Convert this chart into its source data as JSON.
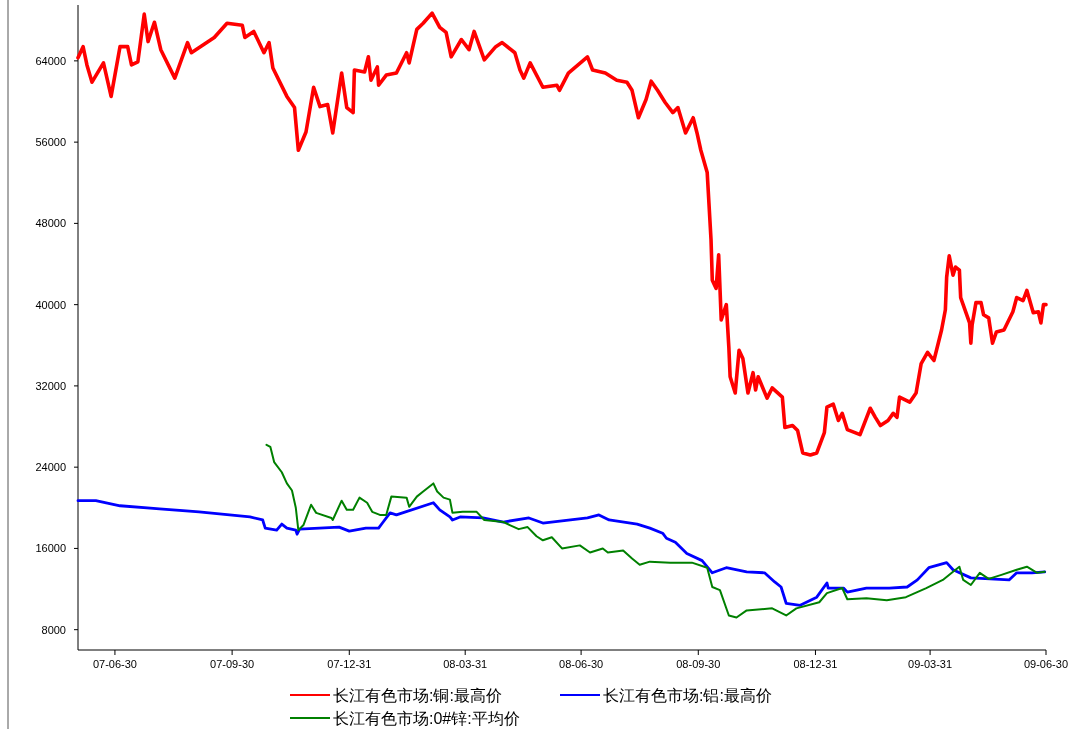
{
  "chart_data": {
    "type": "line",
    "xlim": [
      "2007-06-01",
      "2009-06-30"
    ],
    "ylim": [
      6000,
      69500
    ],
    "xticks": [
      {
        "value": "2007-06-30",
        "label": "07-06-30"
      },
      {
        "value": "2007-09-30",
        "label": "07-09-30"
      },
      {
        "value": "2007-12-31",
        "label": "07-12-31"
      },
      {
        "value": "2008-03-31",
        "label": "08-03-31"
      },
      {
        "value": "2008-06-30",
        "label": "08-06-30"
      },
      {
        "value": "2008-09-30",
        "label": "08-09-30"
      },
      {
        "value": "2008-12-31",
        "label": "08-12-31"
      },
      {
        "value": "2009-03-31",
        "label": "09-03-31"
      },
      {
        "value": "2009-06-30",
        "label": "09-06-30"
      }
    ],
    "yticks": [
      8000,
      16000,
      24000,
      32000,
      40000,
      48000,
      56000,
      64000
    ],
    "grid": false,
    "legend": "bottom",
    "series": [
      {
        "name": "长江有色市场:铜:最高价",
        "color": "#ff0000",
        "x": [
          "2007-06-01",
          "2007-06-05",
          "2007-06-08",
          "2007-06-12",
          "2007-06-21",
          "2007-06-27",
          "2007-07-04",
          "2007-07-10",
          "2007-07-13",
          "2007-07-18",
          "2007-07-23",
          "2007-07-26",
          "2007-07-31",
          "2007-08-05",
          "2007-08-16",
          "2007-08-26",
          "2007-08-29",
          "2007-09-16",
          "2007-09-26",
          "2007-10-08",
          "2007-10-10",
          "2007-10-17",
          "2007-10-25",
          "2007-10-29",
          "2007-11-01",
          "2007-11-12",
          "2007-11-18",
          "2007-11-21",
          "2007-11-27",
          "2007-12-03",
          "2007-12-08",
          "2007-12-14",
          "2007-12-18",
          "2007-12-25",
          "2007-12-29",
          "2008-01-03",
          "2008-01-04",
          "2008-01-12",
          "2008-01-15",
          "2008-01-17",
          "2008-01-22",
          "2008-01-23",
          "2008-01-29",
          "2008-02-06",
          "2008-02-14",
          "2008-02-16",
          "2008-02-22",
          "2008-02-27",
          "2008-03-05",
          "2008-03-11",
          "2008-03-16",
          "2008-03-20",
          "2008-03-28",
          "2008-04-03",
          "2008-04-07",
          "2008-04-15",
          "2008-04-24",
          "2008-04-29",
          "2008-05-09",
          "2008-05-13",
          "2008-05-16",
          "2008-05-21",
          "2008-05-31",
          "2008-06-11",
          "2008-06-13",
          "2008-06-20",
          "2008-07-05",
          "2008-07-09",
          "2008-07-19",
          "2008-07-28",
          "2008-08-05",
          "2008-08-09",
          "2008-08-14",
          "2008-08-20",
          "2008-08-24",
          "2008-08-29",
          "2008-09-04",
          "2008-09-10",
          "2008-09-14",
          "2008-09-20",
          "2008-09-26",
          "2008-09-29",
          "2008-10-02",
          "2008-10-07",
          "2008-10-10",
          "2008-10-11",
          "2008-10-14",
          "2008-10-16",
          "2008-10-17",
          "2008-10-18",
          "2008-10-22",
          "2008-10-24",
          "2008-10-25",
          "2008-10-29",
          "2008-11-01",
          "2008-11-04",
          "2008-11-08",
          "2008-11-12",
          "2008-11-14",
          "2008-11-16",
          "2008-11-23",
          "2008-11-27",
          "2008-12-05",
          "2008-12-07",
          "2008-12-13",
          "2008-12-17",
          "2008-12-21",
          "2008-12-27",
          "2009-01-01",
          "2009-01-07",
          "2009-01-09",
          "2009-01-14",
          "2009-01-18",
          "2009-01-21",
          "2009-01-25",
          "2009-02-04",
          "2009-02-12",
          "2009-02-16",
          "2009-02-20",
          "2009-02-26",
          "2009-03-02",
          "2009-03-05",
          "2009-03-07",
          "2009-03-15",
          "2009-03-20",
          "2009-03-24",
          "2009-03-29",
          "2009-04-03",
          "2009-04-09",
          "2009-04-12",
          "2009-04-13",
          "2009-04-15",
          "2009-04-18",
          "2009-04-20",
          "2009-04-23",
          "2009-04-24",
          "2009-05-01",
          "2009-05-02",
          "2009-05-03",
          "2009-05-06",
          "2009-05-10",
          "2009-05-12",
          "2009-05-16",
          "2009-05-19",
          "2009-05-22",
          "2009-05-28",
          "2009-06-04",
          "2009-06-07",
          "2009-06-12",
          "2009-06-15",
          "2009-06-20",
          "2009-06-24",
          "2009-06-26",
          "2009-06-28",
          "2009-06-30"
        ],
        "values": [
          64300,
          65400,
          63600,
          61900,
          63800,
          60500,
          65400,
          65400,
          63600,
          63900,
          68600,
          65900,
          67800,
          65100,
          62300,
          65800,
          64800,
          66300,
          67700,
          67500,
          66300,
          66900,
          64800,
          65800,
          63300,
          60500,
          59400,
          55200,
          57000,
          61400,
          59500,
          59700,
          56900,
          62800,
          59400,
          58900,
          63100,
          62900,
          64400,
          62100,
          63400,
          61600,
          62600,
          62800,
          64800,
          63800,
          67100,
          67700,
          68700,
          67300,
          66800,
          64400,
          66100,
          65100,
          66900,
          64100,
          65400,
          65800,
          64800,
          63100,
          62300,
          63800,
          61400,
          61600,
          61100,
          62800,
          64400,
          63100,
          62800,
          62100,
          61900,
          61100,
          58400,
          60200,
          62000,
          61100,
          59900,
          58900,
          59400,
          56900,
          58400,
          56900,
          55200,
          53000,
          46400,
          42400,
          41600,
          44900,
          41700,
          38500,
          40000,
          35800,
          32900,
          31300,
          35500,
          34700,
          31300,
          33300,
          31600,
          32900,
          30800,
          31800,
          30900,
          27900,
          28100,
          27600,
          25400,
          25200,
          25400,
          27400,
          29900,
          30200,
          28600,
          29300,
          27700,
          27200,
          29800,
          28900,
          28100,
          28600,
          29300,
          28900,
          30900,
          30400,
          31300,
          34200,
          35300,
          34500,
          37500,
          39500,
          42700,
          44800,
          42900,
          43700,
          43400,
          40700,
          38200,
          36200,
          38000,
          40200,
          40200,
          39000,
          38700,
          36200,
          37300,
          37500,
          39300,
          40700,
          40400,
          41400,
          39200,
          39300,
          38200,
          40000,
          40000
        ]
      },
      {
        "name": "长江有色市场:铝:最高价",
        "color": "#0000ff",
        "x": [
          "2007-06-01",
          "2007-06-15",
          "2007-07-04",
          "2007-08-04",
          "2007-09-04",
          "2007-10-14",
          "2007-10-24",
          "2007-10-26",
          "2007-11-04",
          "2007-11-08",
          "2007-11-12",
          "2007-11-19",
          "2007-11-20",
          "2007-11-22",
          "2007-12-23",
          "2007-12-31",
          "2008-01-13",
          "2008-01-23",
          "2008-01-26",
          "2008-02-01",
          "2008-02-06",
          "2008-03-06",
          "2008-03-11",
          "2008-03-19",
          "2008-03-21",
          "2008-03-27",
          "2008-04-14",
          "2008-04-30",
          "2008-05-20",
          "2008-05-31",
          "2008-07-05",
          "2008-07-14",
          "2008-07-22",
          "2008-08-13",
          "2008-08-23",
          "2008-09-02",
          "2008-09-05",
          "2008-09-12",
          "2008-09-21",
          "2008-10-03",
          "2008-10-11",
          "2008-10-22",
          "2008-11-07",
          "2008-11-21",
          "2008-11-29",
          "2008-12-04",
          "2008-12-08",
          "2008-12-19",
          "2009-01-01",
          "2009-01-09",
          "2009-01-10",
          "2009-01-22",
          "2009-01-25",
          "2009-02-09",
          "2009-02-27",
          "2009-03-13",
          "2009-03-21",
          "2009-03-30",
          "2009-04-13",
          "2009-04-18",
          "2009-05-02",
          "2009-06-01",
          "2009-06-07",
          "2009-06-19",
          "2009-06-29"
        ],
        "values": [
          20700,
          20700,
          20200,
          19900,
          19600,
          19100,
          18800,
          18000,
          17800,
          18400,
          18000,
          17800,
          17400,
          17900,
          18100,
          17700,
          18000,
          18000,
          18500,
          19500,
          19300,
          20500,
          19800,
          19100,
          18800,
          19100,
          19000,
          18600,
          19000,
          18500,
          19000,
          19300,
          18800,
          18400,
          18000,
          17500,
          17000,
          16600,
          15500,
          14800,
          13600,
          14100,
          13700,
          13600,
          12700,
          12200,
          10600,
          10400,
          11200,
          12600,
          12100,
          12100,
          11700,
          12100,
          12100,
          12200,
          12900,
          14100,
          14600,
          13900,
          13100,
          12900,
          13600,
          13600,
          13700
        ]
      },
      {
        "name": "长江有色市场:0#锌:平均价",
        "color": "#008000",
        "x": [
          "2007-10-27",
          "2007-10-30",
          "2007-11-02",
          "2007-11-08",
          "2007-11-12",
          "2007-11-16",
          "2007-11-19",
          "2007-11-21",
          "2007-11-25",
          "2007-12-01",
          "2007-12-05",
          "2007-12-17",
          "2007-12-18",
          "2007-12-25",
          "2007-12-29",
          "2008-01-03",
          "2008-01-08",
          "2008-01-14",
          "2008-01-18",
          "2008-01-24",
          "2008-01-29",
          "2008-02-02",
          "2008-02-14",
          "2008-02-16",
          "2008-02-22",
          "2008-02-27",
          "2008-03-06",
          "2008-03-09",
          "2008-03-14",
          "2008-03-19",
          "2008-03-21",
          "2008-03-29",
          "2008-04-09",
          "2008-04-15",
          "2008-04-30",
          "2008-05-05",
          "2008-05-12",
          "2008-05-19",
          "2008-05-26",
          "2008-05-31",
          "2008-06-07",
          "2008-06-15",
          "2008-06-29",
          "2008-07-07",
          "2008-07-17",
          "2008-07-21",
          "2008-08-02",
          "2008-08-09",
          "2008-08-15",
          "2008-08-23",
          "2008-09-08",
          "2008-09-13",
          "2008-09-25",
          "2008-10-07",
          "2008-10-11",
          "2008-10-17",
          "2008-10-24",
          "2008-10-30",
          "2008-11-07",
          "2008-11-27",
          "2008-12-08",
          "2008-12-16",
          "2009-01-03",
          "2009-01-09",
          "2009-01-21",
          "2009-01-25",
          "2009-02-09",
          "2009-02-25",
          "2009-03-12",
          "2009-03-28",
          "2009-04-10",
          "2009-04-18",
          "2009-04-23",
          "2009-04-26",
          "2009-05-02",
          "2009-05-09",
          "2009-05-16",
          "2009-05-26",
          "2009-06-07",
          "2009-06-15",
          "2009-06-23",
          "2009-06-29"
        ],
        "values": [
          26200,
          26000,
          24500,
          23500,
          22400,
          21700,
          20000,
          17800,
          18300,
          20300,
          19500,
          19000,
          18800,
          20700,
          19800,
          19800,
          21000,
          20500,
          19600,
          19300,
          19300,
          21100,
          21000,
          20100,
          21100,
          21600,
          22400,
          21600,
          21000,
          20800,
          19500,
          19600,
          19600,
          18800,
          18600,
          18300,
          17900,
          18100,
          17200,
          16800,
          17100,
          16000,
          16300,
          15600,
          16000,
          15600,
          15800,
          15000,
          14400,
          14700,
          14600,
          14600,
          14600,
          14100,
          12200,
          11900,
          9400,
          9200,
          9900,
          10100,
          9400,
          10100,
          10700,
          11600,
          12100,
          11000,
          11100,
          10900,
          11200,
          12100,
          12900,
          13700,
          14200,
          12900,
          12400,
          13600,
          13000,
          13400,
          13900,
          14200,
          13600,
          13700
        ]
      }
    ]
  }
}
